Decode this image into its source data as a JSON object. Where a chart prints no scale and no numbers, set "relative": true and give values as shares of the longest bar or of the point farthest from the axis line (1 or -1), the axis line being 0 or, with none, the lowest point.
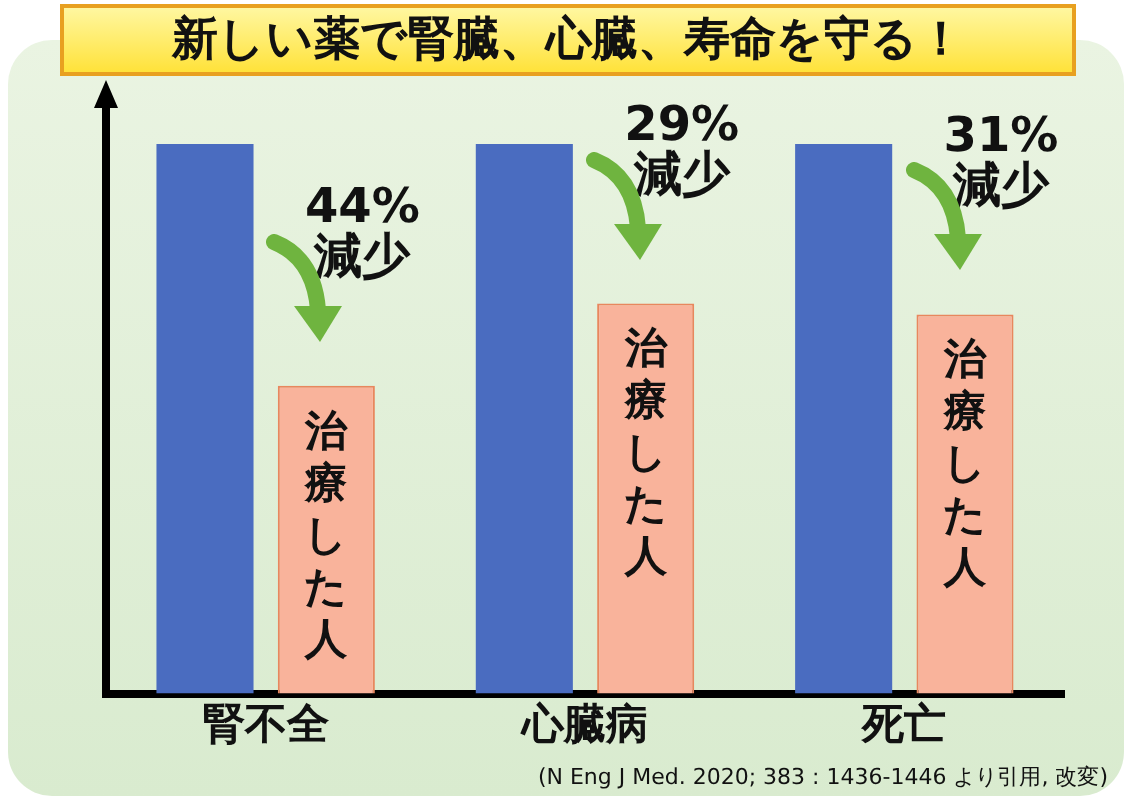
{
  "chart_data": {
    "type": "bar",
    "title": "新しい薬で腎臓、心臓、寿命を守る！",
    "categories": [
      "腎不全",
      "心臓病",
      "死亡"
    ],
    "relative": true,
    "series": [
      {
        "color": "#4a6cc0",
        "values": [
          1,
          1,
          1
        ]
      },
      {
        "name": "治療した人",
        "color": "#f9b39b",
        "values": [
          0.56,
          0.71,
          0.69
        ]
      }
    ],
    "annotations": [
      "44%\n減少",
      "29%\n減少",
      "31%\n減少",
      "(N Eng J Med. 2020; 383 : 1436-1446 より引用, 改変)"
    ]
  }
}
